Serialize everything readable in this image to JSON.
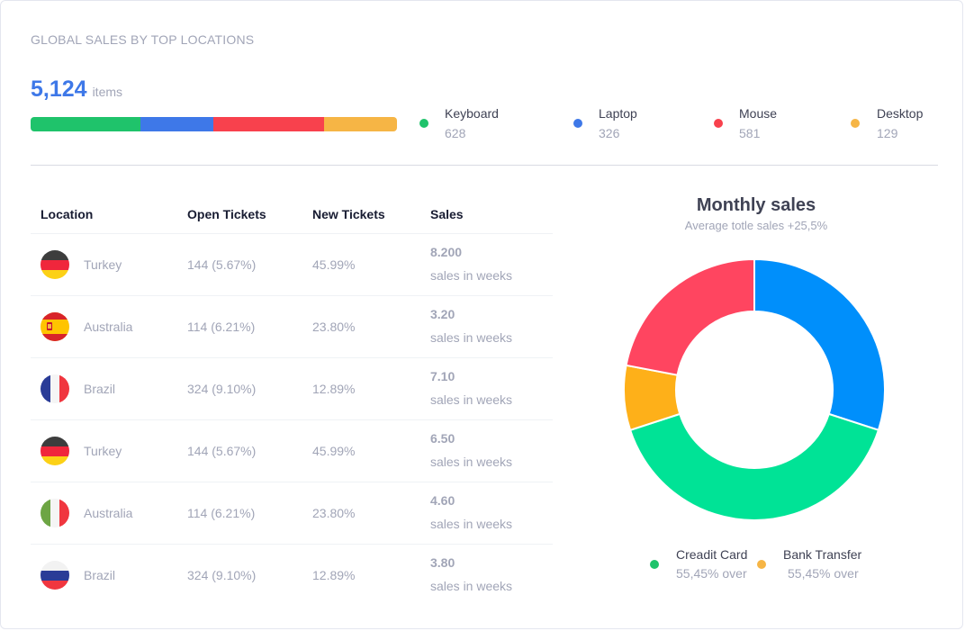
{
  "card": {
    "title": "GLOBAL SALES BY TOP LOCATIONS",
    "total_value": "5,124",
    "total_unit": "items"
  },
  "progress": {
    "segments": [
      {
        "name": "Keyboard",
        "fraction": 0.3,
        "color": "#1fc36b"
      },
      {
        "name": "Laptop",
        "fraction": 0.2,
        "color": "#3e78e8"
      },
      {
        "name": "Mouse",
        "fraction": 0.3,
        "color": "#f8414d"
      },
      {
        "name": "Desktop",
        "fraction": 0.2,
        "color": "#f6b545"
      }
    ]
  },
  "legend_top": [
    {
      "label": "Keyboard",
      "value": "628",
      "color": "#1fc36b"
    },
    {
      "label": "Laptop",
      "value": "326",
      "color": "#3e78e8"
    },
    {
      "label": "Mouse",
      "value": "581",
      "color": "#f8414d"
    },
    {
      "label": "Desktop",
      "value": "129",
      "color": "#f6b545"
    }
  ],
  "table": {
    "headers": [
      "Location",
      "Open Tickets",
      "New Tickets",
      "Sales"
    ],
    "rows": [
      {
        "flag": "germany-flag-icon",
        "location": "Turkey",
        "open": "144 (5.67%)",
        "new": "45.99%",
        "sales": "8.200",
        "sales_sub": "sales in weeks"
      },
      {
        "flag": "spain-flag-icon",
        "location": "Australia",
        "open": "114 (6.21%)",
        "new": "23.80%",
        "sales": "3.20",
        "sales_sub": "sales in weeks"
      },
      {
        "flag": "france-flag-icon",
        "location": "Brazil",
        "open": "324 (9.10%)",
        "new": "12.89%",
        "sales": "7.10",
        "sales_sub": "sales in weeks"
      },
      {
        "flag": "germany-flag-icon",
        "location": "Turkey",
        "open": "144 (5.67%)",
        "new": "45.99%",
        "sales": "6.50",
        "sales_sub": "sales in weeks"
      },
      {
        "flag": "italy-flag-icon",
        "location": "Australia",
        "open": "114 (6.21%)",
        "new": "23.80%",
        "sales": "4.60",
        "sales_sub": "sales in weeks"
      },
      {
        "flag": "russia-flag-icon",
        "location": "Brazil",
        "open": "324 (9.10%)",
        "new": "12.89%",
        "sales": "3.80",
        "sales_sub": "sales in weeks"
      }
    ]
  },
  "monthly_sales": {
    "title": "Monthly sales",
    "subtitle": "Average totle sales +25,5%"
  },
  "chart_data": {
    "type": "pie",
    "donut": true,
    "slices": [
      {
        "value": 30,
        "color": "#008ffb"
      },
      {
        "value": 40,
        "color": "#00e396"
      },
      {
        "value": 8,
        "color": "#feb019"
      },
      {
        "value": 22,
        "color": "#ff4560"
      }
    ]
  },
  "legend_bottom": [
    {
      "label": "Creadit Card",
      "value": "55,45% over",
      "color": "#1fc36b"
    },
    {
      "label": "Bank Transfer",
      "value": "55,45% over",
      "color": "#f6b545"
    }
  ]
}
